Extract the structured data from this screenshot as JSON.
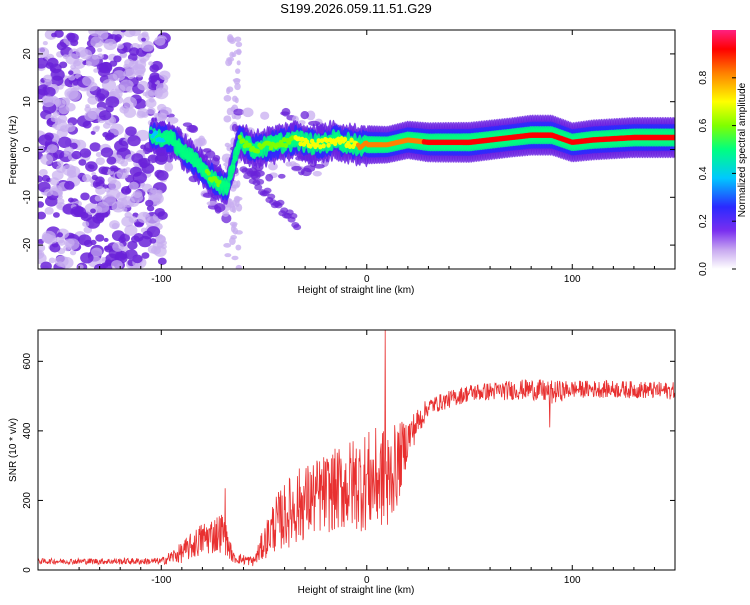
{
  "title": "S199.2026.059.11.51.G29",
  "colors": {
    "snr_line": "#e83030",
    "spectro_main": "#5a1fd0",
    "spectro_light": "#c9b0f0",
    "frame": "#000000"
  },
  "chart_data": [
    {
      "type": "heatmap",
      "name": "spectrogram",
      "xlabel": "Height of straight line (km)",
      "ylabel": "Frequency (Hz)",
      "xlim": [
        -160,
        150
      ],
      "ylim": [
        -25,
        25
      ],
      "xticks": [
        "-100",
        "0",
        "100"
      ],
      "xtick_values": [
        -100,
        0,
        100
      ],
      "yticks": [
        "-20",
        "-10",
        "0",
        "10",
        "20"
      ],
      "ytick_values": [
        -20,
        -10,
        0,
        10,
        20
      ],
      "colorbar": {
        "label": "Normalized spectral amplitude",
        "range": [
          0,
          1
        ],
        "ticks": [
          "0.0",
          "0.2",
          "0.4",
          "0.6",
          "0.8"
        ],
        "tick_values": [
          0.0,
          0.2,
          0.4,
          0.6,
          0.8
        ],
        "colormap": [
          "#ffffff",
          "#8a3ff0",
          "#2a2aff",
          "#00c8ff",
          "#00ff80",
          "#80ff00",
          "#ffff00",
          "#ff8000",
          "#ff0000",
          "#ff2080"
        ]
      },
      "ridge": {
        "x": [
          -105,
          -95,
          -85,
          -78,
          -72,
          -68,
          -62,
          -55,
          -45,
          -35,
          -25,
          -15,
          -5,
          0,
          10,
          20,
          30,
          50,
          70,
          80,
          90,
          100,
          110,
          130,
          150
        ],
        "frequency": [
          3,
          2,
          -2,
          -5,
          -7,
          -8,
          2,
          0,
          1,
          2,
          1,
          2,
          1,
          1,
          1,
          2,
          1.5,
          1.5,
          2.5,
          3,
          3,
          1.5,
          2,
          2.5,
          2.5
        ],
        "amplitude": [
          0.3,
          0.45,
          0.5,
          0.5,
          0.55,
          0.4,
          0.5,
          0.55,
          0.6,
          0.6,
          0.65,
          0.65,
          0.7,
          0.8,
          0.7,
          0.75,
          0.85,
          0.9,
          0.85,
          0.9,
          0.9,
          0.85,
          0.9,
          0.9,
          0.9
        ]
      }
    },
    {
      "type": "line",
      "name": "snr",
      "xlabel": "Height of straight line (km)",
      "ylabel": "SNR (10 * v/v)",
      "xlim": [
        -160,
        150
      ],
      "ylim": [
        0,
        690
      ],
      "xticks": [
        "-100",
        "0",
        "100"
      ],
      "xtick_values": [
        -100,
        0,
        100
      ],
      "yticks": [
        "0",
        "200",
        "400",
        "600"
      ],
      "ytick_values": [
        0,
        200,
        400,
        600
      ],
      "envelope": {
        "x": [
          -160,
          -100,
          -90,
          -80,
          -70,
          -65,
          -55,
          -45,
          -35,
          -25,
          -15,
          -5,
          5,
          10,
          15,
          20,
          30,
          50,
          80,
          90,
          100,
          120,
          150
        ],
        "mean": [
          25,
          25,
          50,
          90,
          110,
          35,
          25,
          130,
          180,
          210,
          230,
          250,
          260,
          270,
          300,
          380,
          470,
          510,
          520,
          510,
          520,
          520,
          515
        ],
        "noise": [
          8,
          10,
          30,
          50,
          60,
          15,
          15,
          80,
          110,
          110,
          120,
          140,
          150,
          140,
          120,
          60,
          25,
          25,
          30,
          35,
          25,
          25,
          25
        ]
      },
      "spikes": [
        {
          "x": 9,
          "value": 690
        },
        {
          "x": 10,
          "value": 130
        },
        {
          "x": 89,
          "value": 410
        },
        {
          "x": -69,
          "value": 235
        }
      ]
    }
  ]
}
